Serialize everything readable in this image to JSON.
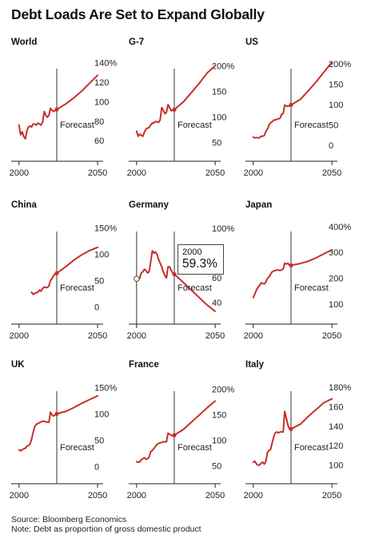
{
  "title": "Debt Loads Are Set to Expand Globally",
  "source": "Source: Bloomberg Economics",
  "note": "Note: Debt as proportion of gross domestic product",
  "forecast_label": "Forecast",
  "colors": {
    "line": "#c62f2a",
    "axis": "#222222",
    "forecast_line": "#333333"
  },
  "tooltip": {
    "year": "2000",
    "value": "59.3%"
  },
  "chart_data": [
    {
      "type": "line",
      "title": "World",
      "forecast_start": 2024,
      "xlim": [
        1995,
        2052
      ],
      "ylim": [
        52,
        142
      ],
      "x_ticks": [
        2000,
        2050
      ],
      "y_ticks": [
        {
          "v": 140,
          "label": "140%"
        },
        {
          "v": 120,
          "label": "120"
        },
        {
          "v": 100,
          "label": "100"
        },
        {
          "v": 80,
          "label": "80"
        },
        {
          "v": 60,
          "label": "60"
        }
      ],
      "series": [
        {
          "x": [
            2000,
            2001,
            2002,
            2003,
            2004,
            2005,
            2006,
            2007,
            2008,
            2009,
            2010,
            2011,
            2012,
            2013,
            2014,
            2015,
            2016,
            2017,
            2018,
            2019,
            2020,
            2021,
            2022,
            2023,
            2024,
            2030,
            2035,
            2040,
            2045,
            2050
          ],
          "y": [
            76,
            66,
            69,
            64,
            62,
            70,
            74,
            75,
            74,
            77,
            77,
            76,
            78,
            77,
            76,
            79,
            90,
            86,
            84,
            86,
            93,
            91,
            90,
            91,
            92,
            98,
            104,
            111,
            119,
            127
          ]
        }
      ]
    },
    {
      "type": "line",
      "title": "G-7",
      "forecast_start": 2024,
      "xlim": [
        1995,
        2052
      ],
      "ylim": [
        38,
        210
      ],
      "x_ticks": [
        2000,
        2050
      ],
      "y_ticks": [
        {
          "v": 200,
          "label": "200%"
        },
        {
          "v": 150,
          "label": "150"
        },
        {
          "v": 100,
          "label": "100"
        },
        {
          "v": 50,
          "label": "50"
        }
      ],
      "series": [
        {
          "x": [
            2000,
            2001,
            2002,
            2003,
            2004,
            2005,
            2006,
            2007,
            2008,
            2009,
            2010,
            2011,
            2012,
            2013,
            2014,
            2015,
            2016,
            2017,
            2018,
            2019,
            2020,
            2021,
            2022,
            2023,
            2024,
            2030,
            2035,
            2040,
            2045,
            2050
          ],
          "y": [
            72,
            62,
            66,
            64,
            62,
            70,
            76,
            78,
            79,
            84,
            88,
            88,
            91,
            90,
            89,
            94,
            118,
            113,
            106,
            109,
            124,
            118,
            112,
            113,
            114,
            130,
            148,
            166,
            186,
            200
          ]
        }
      ]
    },
    {
      "type": "line",
      "title": "US",
      "forecast_start": 2024,
      "xlim": [
        1995,
        2052
      ],
      "ylim": [
        -8,
        208
      ],
      "x_ticks": [
        2000,
        2050
      ],
      "y_ticks": [
        {
          "v": 200,
          "label": "200%"
        },
        {
          "v": 150,
          "label": "150"
        },
        {
          "v": 100,
          "label": "100"
        },
        {
          "v": 50,
          "label": "50"
        },
        {
          "v": 0,
          "label": "0"
        }
      ],
      "series": [
        {
          "x": [
            2000,
            2001,
            2002,
            2003,
            2004,
            2005,
            2006,
            2007,
            2008,
            2009,
            2010,
            2011,
            2012,
            2013,
            2014,
            2015,
            2016,
            2017,
            2018,
            2019,
            2020,
            2021,
            2022,
            2023,
            2024,
            2030,
            2035,
            2040,
            2045,
            2050
          ],
          "y": [
            20,
            18,
            19,
            18,
            19,
            22,
            22,
            24,
            34,
            40,
            50,
            55,
            58,
            62,
            62,
            64,
            65,
            66,
            76,
            78,
            99,
            96,
            96,
            97,
            99,
            113,
            134,
            156,
            180,
            204
          ]
        }
      ]
    },
    {
      "type": "line",
      "title": "China",
      "forecast_start": 2024,
      "xlim": [
        1995,
        2052
      ],
      "ylim": [
        -8,
        158
      ],
      "x_ticks": [
        2000,
        2050
      ],
      "y_ticks": [
        {
          "v": 150,
          "label": "150%"
        },
        {
          "v": 100,
          "label": "100"
        },
        {
          "v": 50,
          "label": "50"
        },
        {
          "v": 0,
          "label": "0"
        }
      ],
      "series": [
        {
          "x": [
            2008,
            2009,
            2010,
            2011,
            2012,
            2013,
            2014,
            2015,
            2016,
            2017,
            2018,
            2019,
            2020,
            2021,
            2022,
            2023,
            2024,
            2030,
            2035,
            2040,
            2045,
            2050
          ],
          "y": [
            28,
            24,
            26,
            27,
            28,
            32,
            30,
            35,
            38,
            37,
            37,
            40,
            50,
            54,
            60,
            62,
            64,
            77,
            89,
            99,
            107,
            113
          ]
        }
      ]
    },
    {
      "type": "line",
      "title": "Germany",
      "forecast_start": 2024,
      "xlim": [
        1995,
        2052
      ],
      "ylim": [
        33,
        104
      ],
      "x_ticks": [
        2000,
        2050
      ],
      "y_ticks": [
        {
          "v": 100,
          "label": "100%"
        },
        {
          "v": 80,
          "label": "80"
        },
        {
          "v": 60,
          "label": "60"
        },
        {
          "v": 40,
          "label": "40"
        }
      ],
      "series": [
        {
          "x": [
            2000,
            2001,
            2002,
            2003,
            2004,
            2005,
            2006,
            2007,
            2008,
            2009,
            2010,
            2011,
            2012,
            2013,
            2014,
            2015,
            2016,
            2017,
            2018,
            2019,
            2020,
            2021,
            2022,
            2023,
            2024,
            2030,
            2035,
            2040,
            2045,
            2050
          ],
          "y": [
            59.3,
            58,
            60,
            64,
            65,
            67,
            66,
            64,
            65,
            73,
            82,
            80,
            81,
            79,
            75,
            72,
            69,
            65,
            62,
            60,
            69,
            69,
            66,
            64,
            63,
            56,
            50,
            44,
            38,
            33
          ]
        }
      ]
    },
    {
      "type": "line",
      "title": "Japan",
      "forecast_start": 2024,
      "xlim": [
        1995,
        2052
      ],
      "ylim": [
        72,
        412
      ],
      "x_ticks": [
        2000,
        2050
      ],
      "y_ticks": [
        {
          "v": 400,
          "label": "400%"
        },
        {
          "v": 300,
          "label": "300"
        },
        {
          "v": 200,
          "label": "200"
        },
        {
          "v": 100,
          "label": "100"
        }
      ],
      "series": [
        {
          "x": [
            2000,
            2001,
            2002,
            2003,
            2004,
            2005,
            2006,
            2007,
            2008,
            2009,
            2010,
            2011,
            2012,
            2013,
            2014,
            2015,
            2016,
            2017,
            2018,
            2019,
            2020,
            2021,
            2022,
            2023,
            2024,
            2030,
            2035,
            2040,
            2045,
            2050
          ],
          "y": [
            125,
            140,
            155,
            165,
            172,
            182,
            180,
            178,
            185,
            200,
            205,
            215,
            225,
            228,
            230,
            232,
            232,
            230,
            232,
            236,
            258,
            255,
            258,
            250,
            250,
            257,
            266,
            279,
            295,
            310
          ]
        }
      ]
    },
    {
      "type": "line",
      "title": "UK",
      "forecast_start": 2024,
      "xlim": [
        1995,
        2052
      ],
      "ylim": [
        -8,
        158
      ],
      "x_ticks": [
        2000,
        2050
      ],
      "y_ticks": [
        {
          "v": 150,
          "label": "150%"
        },
        {
          "v": 100,
          "label": "100"
        },
        {
          "v": 50,
          "label": "50"
        },
        {
          "v": 0,
          "label": "0"
        }
      ],
      "series": [
        {
          "x": [
            2000,
            2001,
            2002,
            2003,
            2004,
            2005,
            2006,
            2007,
            2008,
            2009,
            2010,
            2011,
            2012,
            2013,
            2014,
            2015,
            2016,
            2017,
            2018,
            2019,
            2020,
            2021,
            2022,
            2023,
            2024,
            2030,
            2035,
            2040,
            2045,
            2050
          ],
          "y": [
            32,
            30,
            32,
            34,
            35,
            39,
            40,
            43,
            52,
            65,
            76,
            80,
            82,
            83,
            85,
            86,
            86,
            85,
            84,
            84,
            103,
            98,
            96,
            98,
            100,
            105,
            112,
            120,
            127,
            134
          ]
        }
      ]
    },
    {
      "type": "line",
      "title": "France",
      "forecast_start": 2024,
      "xlim": [
        1995,
        2052
      ],
      "ylim": [
        40,
        212
      ],
      "x_ticks": [
        2000,
        2050
      ],
      "y_ticks": [
        {
          "v": 200,
          "label": "200%"
        },
        {
          "v": 150,
          "label": "150"
        },
        {
          "v": 100,
          "label": "100"
        },
        {
          "v": 50,
          "label": "50"
        }
      ],
      "series": [
        {
          "x": [
            2000,
            2001,
            2002,
            2003,
            2004,
            2005,
            2006,
            2007,
            2008,
            2009,
            2010,
            2011,
            2012,
            2013,
            2014,
            2015,
            2016,
            2017,
            2018,
            2019,
            2020,
            2021,
            2022,
            2023,
            2024,
            2030,
            2035,
            2040,
            2045,
            2050
          ],
          "y": [
            58,
            57,
            58,
            62,
            64,
            66,
            63,
            64,
            67,
            78,
            80,
            84,
            88,
            92,
            94,
            95,
            96,
            97,
            97,
            97,
            114,
            112,
            110,
            109,
            110,
            122,
            136,
            150,
            164,
            177
          ]
        }
      ]
    },
    {
      "type": "line",
      "title": "Italy",
      "forecast_start": 2024,
      "xlim": [
        1995,
        2052
      ],
      "ylim": [
        94,
        184
      ],
      "x_ticks": [
        2000,
        2050
      ],
      "y_ticks": [
        {
          "v": 180,
          "label": "180%"
        },
        {
          "v": 160,
          "label": "160"
        },
        {
          "v": 140,
          "label": "140"
        },
        {
          "v": 120,
          "label": "120"
        },
        {
          "v": 100,
          "label": "100"
        }
      ],
      "series": [
        {
          "x": [
            2000,
            2001,
            2002,
            2003,
            2004,
            2005,
            2006,
            2007,
            2008,
            2009,
            2010,
            2011,
            2012,
            2013,
            2014,
            2015,
            2016,
            2017,
            2018,
            2019,
            2020,
            2021,
            2022,
            2023,
            2024,
            2030,
            2035,
            2040,
            2045,
            2050
          ],
          "y": [
            103,
            104,
            101,
            100,
            100,
            102,
            103,
            101,
            104,
            113,
            115,
            116,
            123,
            129,
            133,
            134,
            133,
            134,
            134,
            134,
            155,
            148,
            141,
            137,
            137,
            142,
            150,
            157,
            164,
            168
          ]
        }
      ]
    }
  ]
}
